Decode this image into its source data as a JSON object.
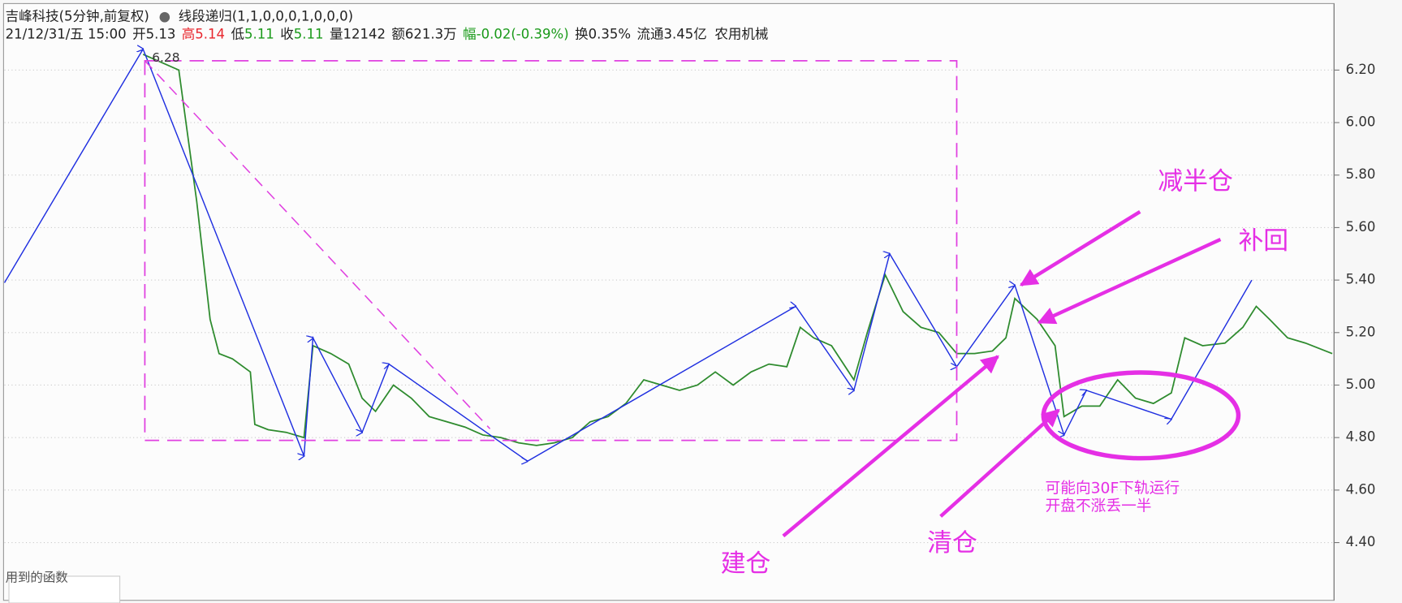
{
  "header": {
    "name": "吉峰科技(5分钟,前复权)",
    "indicator": "线段递归(1,1,0,0,0,1,0,0,0)",
    "datetime": "21/12/31/五 15:00",
    "open_label": "开",
    "open": "5.13",
    "high_label": "高",
    "high": "5.14",
    "low_label": "低",
    "low": "5.11",
    "close_label": "收",
    "close": "5.11",
    "volume_label": "量",
    "volume": "12142",
    "amount_label": "额",
    "amount": "621.3万",
    "change_label": "幅",
    "change": "-0.02(-0.39%)",
    "turnover_label": "换",
    "turnover": "0.35%",
    "float_label": "流通",
    "float": "3.45亿",
    "industry": "农用机械"
  },
  "footer": "用到的函数",
  "chart_data": {
    "type": "line",
    "peak_label": "6.28",
    "annotations": [
      "减半仓",
      "补回",
      "建仓",
      "清仓",
      "可能向30F下轨运行",
      "开盘不涨丢一半"
    ],
    "xlim": [
      0,
      297
    ],
    "ylim": [
      4.18,
      6.45
    ],
    "yticks": [
      {
        "value": 4.4,
        "label": "4.40"
      },
      {
        "value": 4.6,
        "label": "4.60"
      },
      {
        "value": 4.8,
        "label": "4.80"
      },
      {
        "value": 5.0,
        "label": "5.00"
      },
      {
        "value": 5.2,
        "label": "5.20"
      },
      {
        "value": 5.4,
        "label": "5.40"
      },
      {
        "value": 5.6,
        "label": "5.60"
      },
      {
        "value": 5.8,
        "label": "5.80"
      },
      {
        "value": 6.0,
        "label": "6.00"
      },
      {
        "value": 6.2,
        "label": "6.20"
      }
    ],
    "grid": true,
    "series": [
      {
        "color": "#2e8b2e",
        "x": [
          31,
          39,
          41,
          43,
          44,
          46,
          48,
          51,
          55,
          56,
          59,
          63,
          67,
          69,
          73,
          77,
          80,
          83,
          87,
          91,
          95,
          99,
          103,
          107,
          111,
          115,
          119,
          123,
          127,
          131,
          135,
          139,
          143,
          147,
          151,
          155,
          159,
          163,
          167,
          171,
          175,
          178,
          181,
          185,
          190,
          193,
          197,
          201,
          205,
          209,
          213,
          217,
          221,
          224,
          226,
          231,
          235,
          237,
          241,
          245,
          249,
          253,
          257,
          261,
          264,
          268,
          273,
          277,
          280,
          283,
          287,
          291,
          297
        ],
        "values": [
          6.26,
          6.2,
          5.95,
          5.7,
          5.55,
          5.25,
          5.12,
          5.1,
          5.05,
          4.85,
          4.83,
          4.82,
          4.8,
          5.15,
          5.12,
          5.08,
          4.95,
          4.9,
          5.0,
          4.95,
          4.88,
          4.86,
          4.84,
          4.81,
          4.8,
          4.78,
          4.77,
          4.78,
          4.8,
          4.86,
          4.88,
          4.93,
          5.02,
          5.0,
          4.98,
          5.0,
          5.05,
          5.0,
          5.05,
          5.08,
          5.07,
          5.22,
          5.18,
          5.15,
          5.02,
          5.2,
          5.42,
          5.28,
          5.22,
          5.2,
          5.12,
          5.12,
          5.13,
          5.18,
          5.33,
          5.25,
          5.15,
          4.88,
          4.92,
          4.92,
          5.02,
          4.95,
          4.93,
          4.97,
          5.18,
          5.15,
          5.16,
          5.22,
          5.3,
          5.25,
          5.18,
          5.16,
          5.12
        ]
      },
      {
        "color": "#1f2fe0",
        "x": [
          0,
          31,
          67,
          69,
          80,
          86,
          117,
          177,
          190,
          198,
          213,
          226,
          237,
          242,
          261,
          279
        ],
        "values": [
          5.39,
          6.28,
          4.73,
          5.18,
          4.82,
          5.08,
          4.71,
          5.3,
          4.98,
          5.5,
          5.07,
          5.38,
          4.81,
          4.98,
          4.87,
          5.4
        ]
      }
    ]
  }
}
